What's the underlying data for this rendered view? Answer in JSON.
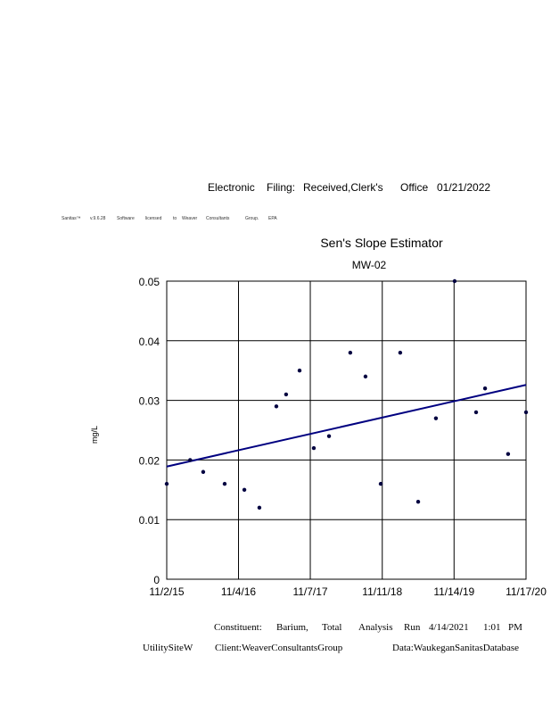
{
  "header": {
    "filing": [
      "Electronic",
      "Filing:",
      "Received,Clerk's",
      "Office",
      "01/21/2022"
    ],
    "license": [
      "Sanitas™",
      "v.9.6.28",
      "Software",
      "licensed",
      "to",
      "Weaver",
      "Consultants",
      "Group.",
      "EPA"
    ]
  },
  "footer": {
    "line1": [
      "Constituent:",
      "Barium,",
      "Total",
      "Analysis",
      "Run",
      "4/14/2021",
      "1:01",
      "PM"
    ],
    "site": "UtilitySiteW",
    "client": "Client:WeaverConsultantsGroup",
    "data": "Data:WaukeganSanitasDatabase"
  },
  "chart_data": {
    "type": "scatter",
    "title": "Sen's Slope Estimator",
    "subtitle": "MW-02",
    "xlabel": "",
    "ylabel": "mg/L",
    "xlim": [
      "2015-11-02",
      "2020-11-17"
    ],
    "ylim": [
      0,
      0.05
    ],
    "x_ticks": [
      "11/2/15",
      "11/4/16",
      "11/7/17",
      "11/11/18",
      "11/14/19",
      "11/17/20"
    ],
    "x_tick_dates": [
      "2015-11-02",
      "2016-11-04",
      "2017-11-07",
      "2018-11-11",
      "2019-11-14",
      "2020-11-17"
    ],
    "y_ticks": [
      "0",
      "0.01",
      "0.02",
      "0.03",
      "0.04",
      "0.05"
    ],
    "grid": true,
    "point_color": "#000040",
    "trend_color": "#000080",
    "points": [
      {
        "x": "2015-11-02",
        "y": 0.016
      },
      {
        "x": "2016-03-01",
        "y": 0.02
      },
      {
        "x": "2016-05-07",
        "y": 0.018
      },
      {
        "x": "2016-08-25",
        "y": 0.016
      },
      {
        "x": "2016-12-04",
        "y": 0.015
      },
      {
        "x": "2017-02-19",
        "y": 0.012
      },
      {
        "x": "2017-05-17",
        "y": 0.029
      },
      {
        "x": "2017-07-06",
        "y": 0.031
      },
      {
        "x": "2017-09-13",
        "y": 0.035
      },
      {
        "x": "2017-11-25",
        "y": 0.022
      },
      {
        "x": "2018-02-11",
        "y": 0.024
      },
      {
        "x": "2018-05-31",
        "y": 0.038
      },
      {
        "x": "2018-08-17",
        "y": 0.034
      },
      {
        "x": "2018-11-03",
        "y": 0.016
      },
      {
        "x": "2019-02-11",
        "y": 0.038
      },
      {
        "x": "2019-05-14",
        "y": 0.013
      },
      {
        "x": "2019-08-13",
        "y": 0.027
      },
      {
        "x": "2019-11-17",
        "y": 0.05
      },
      {
        "x": "2020-03-06",
        "y": 0.028
      },
      {
        "x": "2020-04-21",
        "y": 0.032
      },
      {
        "x": "2020-08-17",
        "y": 0.021
      },
      {
        "x": "2020-11-17",
        "y": 0.028
      }
    ],
    "trend_line": [
      {
        "x": "2015-11-02",
        "y": 0.0189
      },
      {
        "x": "2020-11-17",
        "y": 0.0326
      }
    ]
  }
}
